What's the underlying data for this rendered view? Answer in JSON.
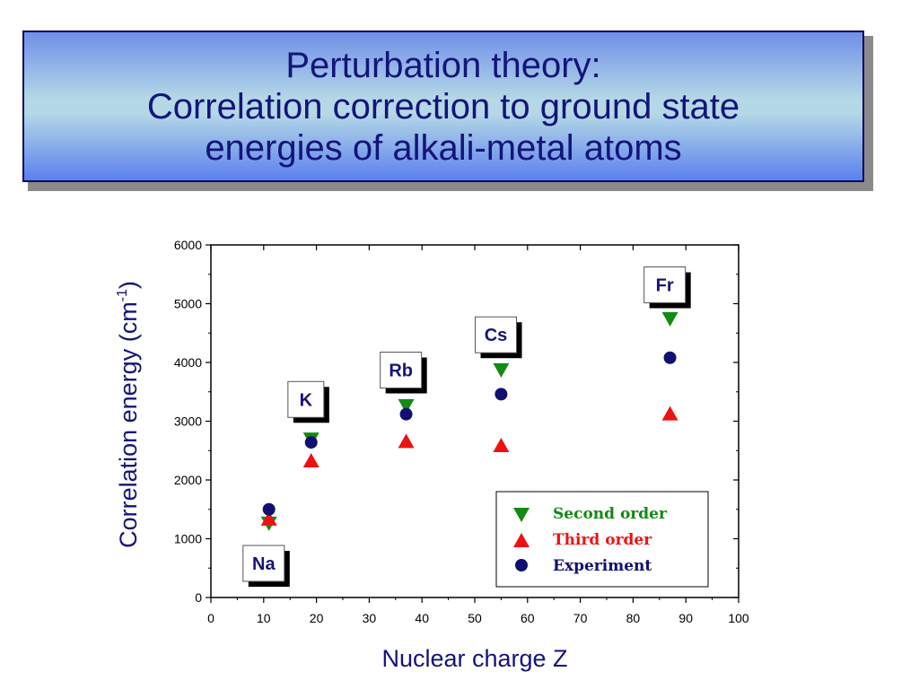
{
  "title": {
    "line1": "Perturbation theory:",
    "line2": "Correlation correction to ground state",
    "line3": "energies of alkali-metal atoms"
  },
  "colors": {
    "second": "#138a13",
    "third": "#ee1111",
    "experiment": "#101070",
    "axis_title": "#14147a"
  },
  "chart_data": {
    "type": "scatter",
    "xlabel": "Nuclear charge Z",
    "ylabel": "Correlation energy (cm",
    "ylabel_sup": "-1",
    "ylabel_close": ")",
    "xlim": [
      0,
      100
    ],
    "ylim": [
      0,
      6000
    ],
    "xticks": [
      0,
      10,
      20,
      30,
      40,
      50,
      60,
      70,
      80,
      90,
      100
    ],
    "yticks": [
      0,
      1000,
      2000,
      3000,
      4000,
      5000,
      6000
    ],
    "grid": false,
    "legend_position": "bottom-right",
    "series": [
      {
        "name": "Second order",
        "marker": "triangle-down",
        "color": "#138a13",
        "points": [
          [
            11,
            1270
          ],
          [
            19,
            2700
          ],
          [
            37,
            3270
          ],
          [
            55,
            3880
          ],
          [
            87,
            4750
          ]
        ]
      },
      {
        "name": "Third order",
        "marker": "triangle-up",
        "color": "#ee1111",
        "points": [
          [
            11,
            1330
          ],
          [
            19,
            2320
          ],
          [
            37,
            2650
          ],
          [
            55,
            2580
          ],
          [
            87,
            3120
          ]
        ]
      },
      {
        "name": "Experiment",
        "marker": "circle",
        "color": "#101070",
        "points": [
          [
            11,
            1500
          ],
          [
            19,
            2640
          ],
          [
            37,
            3120
          ],
          [
            55,
            3460
          ],
          [
            87,
            4080
          ]
        ]
      }
    ],
    "annotations": [
      {
        "text": "Na",
        "x": 10,
        "y": 580
      },
      {
        "text": "K",
        "x": 18,
        "y": 3370
      },
      {
        "text": "Rb",
        "x": 36,
        "y": 3870
      },
      {
        "text": "Cs",
        "x": 54,
        "y": 4470
      },
      {
        "text": "Fr",
        "x": 86,
        "y": 5320
      }
    ]
  }
}
